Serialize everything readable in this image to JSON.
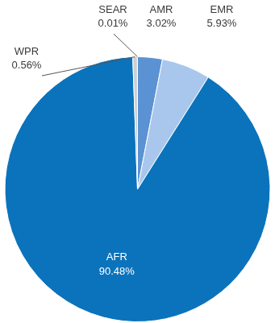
{
  "chart_data": {
    "type": "pie",
    "categories": [
      "AMR",
      "EMR",
      "AFR",
      "WPR",
      "SEAR"
    ],
    "values": [
      3.02,
      5.93,
      90.48,
      0.56,
      0.01
    ],
    "value_labels": [
      "3.02%",
      "5.93%",
      "90.48%",
      "0.56%",
      "0.01%"
    ],
    "colors": [
      "#5b92d3",
      "#a9c7ec",
      "#0b73bb",
      "#c9d0d6",
      "#9db3c9"
    ],
    "data_labels": true
  }
}
